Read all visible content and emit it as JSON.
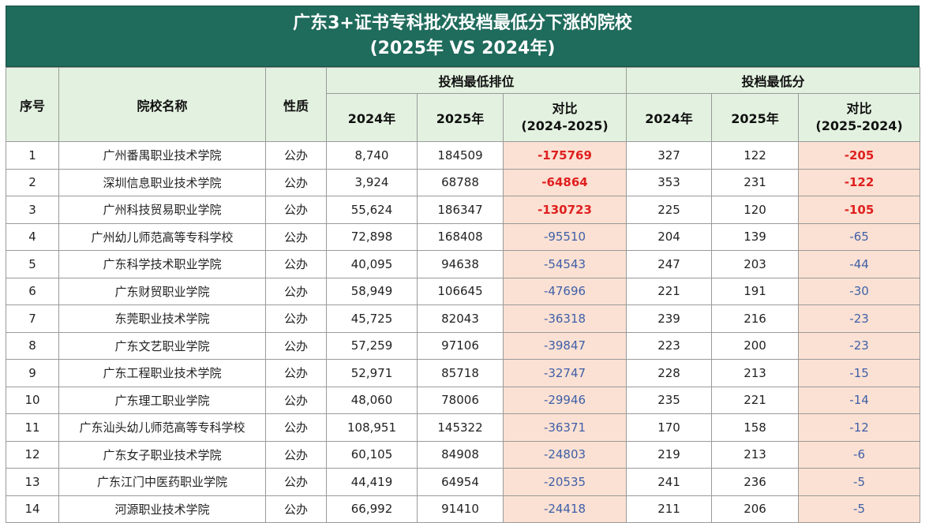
{
  "title": {
    "line1": "广东3+证书专科批次投档最低分下涨的院校",
    "line2": "(2025年 VS 2024年)"
  },
  "headers": {
    "seq": "序号",
    "name": "院校名称",
    "nature": "性质",
    "rank_group": "投档最低排位",
    "score_group": "投档最低分",
    "y2024": "2024年",
    "y2025": "2025年",
    "rank_diff_l1": "对比",
    "rank_diff_l2": "(2024-2025)",
    "score_diff_l1": "对比",
    "score_diff_l2": "(2025-2024)"
  },
  "colors": {
    "title_bg": "#1f6b5c",
    "header_bg": "#e3f2e0",
    "diff_bg": "#fbe1d3",
    "highlight_text": "#e02020",
    "normal_diff_text": "#3f5fa8"
  },
  "rows": [
    {
      "seq": "1",
      "name": "广州番禺职业技术学院",
      "nature": "公办",
      "rank2024": "8,740",
      "rank2025": "184509",
      "rankDiff": "-175769",
      "score2024": "327",
      "score2025": "122",
      "scoreDiff": "-205",
      "highlight": true
    },
    {
      "seq": "2",
      "name": "深圳信息职业技术学院",
      "nature": "公办",
      "rank2024": "3,924",
      "rank2025": "68788",
      "rankDiff": "-64864",
      "score2024": "353",
      "score2025": "231",
      "scoreDiff": "-122",
      "highlight": true
    },
    {
      "seq": "3",
      "name": "广州科技贸易职业学院",
      "nature": "公办",
      "rank2024": "55,624",
      "rank2025": "186347",
      "rankDiff": "-130723",
      "score2024": "225",
      "score2025": "120",
      "scoreDiff": "-105",
      "highlight": true
    },
    {
      "seq": "4",
      "name": "广州幼儿师范高等专科学校",
      "nature": "公办",
      "rank2024": "72,898",
      "rank2025": "168408",
      "rankDiff": "-95510",
      "score2024": "204",
      "score2025": "139",
      "scoreDiff": "-65",
      "highlight": false
    },
    {
      "seq": "5",
      "name": "广东科学技术职业学院",
      "nature": "公办",
      "rank2024": "40,095",
      "rank2025": "94638",
      "rankDiff": "-54543",
      "score2024": "247",
      "score2025": "203",
      "scoreDiff": "-44",
      "highlight": false
    },
    {
      "seq": "6",
      "name": "广东财贸职业学院",
      "nature": "公办",
      "rank2024": "58,949",
      "rank2025": "106645",
      "rankDiff": "-47696",
      "score2024": "221",
      "score2025": "191",
      "scoreDiff": "-30",
      "highlight": false
    },
    {
      "seq": "7",
      "name": "东莞职业技术学院",
      "nature": "公办",
      "rank2024": "45,725",
      "rank2025": "82043",
      "rankDiff": "-36318",
      "score2024": "239",
      "score2025": "216",
      "scoreDiff": "-23",
      "highlight": false
    },
    {
      "seq": "8",
      "name": "广东文艺职业学院",
      "nature": "公办",
      "rank2024": "57,259",
      "rank2025": "97106",
      "rankDiff": "-39847",
      "score2024": "223",
      "score2025": "200",
      "scoreDiff": "-23",
      "highlight": false
    },
    {
      "seq": "9",
      "name": "广东工程职业技术学院",
      "nature": "公办",
      "rank2024": "52,971",
      "rank2025": "85718",
      "rankDiff": "-32747",
      "score2024": "228",
      "score2025": "213",
      "scoreDiff": "-15",
      "highlight": false
    },
    {
      "seq": "10",
      "name": "广东理工职业学院",
      "nature": "公办",
      "rank2024": "48,060",
      "rank2025": "78006",
      "rankDiff": "-29946",
      "score2024": "235",
      "score2025": "221",
      "scoreDiff": "-14",
      "highlight": false
    },
    {
      "seq": "11",
      "name": "广东汕头幼儿师范高等专科学校",
      "nature": "公办",
      "rank2024": "108,951",
      "rank2025": "145322",
      "rankDiff": "-36371",
      "score2024": "170",
      "score2025": "158",
      "scoreDiff": "-12",
      "highlight": false
    },
    {
      "seq": "12",
      "name": "广东女子职业技术学院",
      "nature": "公办",
      "rank2024": "60,105",
      "rank2025": "84908",
      "rankDiff": "-24803",
      "score2024": "219",
      "score2025": "213",
      "scoreDiff": "-6",
      "highlight": false
    },
    {
      "seq": "13",
      "name": "广东江门中医药职业学院",
      "nature": "公办",
      "rank2024": "44,419",
      "rank2025": "64954",
      "rankDiff": "-20535",
      "score2024": "241",
      "score2025": "236",
      "scoreDiff": "-5",
      "highlight": false
    },
    {
      "seq": "14",
      "name": "河源职业技术学院",
      "nature": "公办",
      "rank2024": "66,992",
      "rank2025": "91410",
      "rankDiff": "-24418",
      "score2024": "211",
      "score2025": "206",
      "scoreDiff": "-5",
      "highlight": false
    }
  ]
}
